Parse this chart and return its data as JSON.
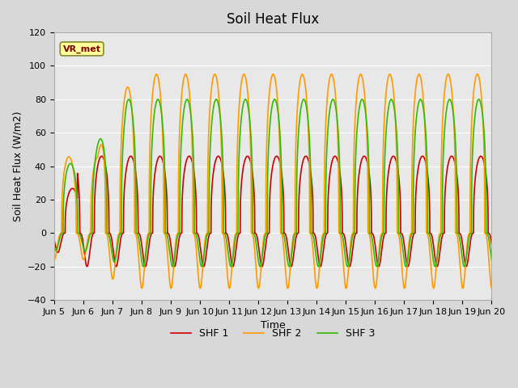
{
  "title": "Soil Heat Flux",
  "xlabel": "Time",
  "ylabel": "Soil Heat Flux (W/m2)",
  "xlim_days": [
    0,
    15
  ],
  "ylim": [
    -40,
    120
  ],
  "yticks": [
    -40,
    -20,
    0,
    20,
    40,
    60,
    80,
    100,
    120
  ],
  "background_color": "#d8d8d8",
  "plot_bg_color": "#e8e8e8",
  "shf1_color": "#cc0000",
  "shf2_color": "#ff9900",
  "shf3_color": "#33bb00",
  "legend_labels": [
    "SHF 1",
    "SHF 2",
    "SHF 3"
  ],
  "annotation_text": "VR_met",
  "annotation_box_color": "#ffff99",
  "annotation_text_color": "#800000",
  "title_fontsize": 12,
  "axis_label_fontsize": 9,
  "tick_label_fontsize": 8,
  "xtick_labels": [
    "Jun 5",
    "Jun 6",
    "Jun 7",
    "Jun 8",
    "Jun 9",
    "Jun 10",
    "Jun 11",
    "Jun 12",
    "Jun 13",
    "Jun 14",
    "Jun 15",
    "Jun 16",
    "Jun 17",
    "Jun 18",
    "Jun 19",
    "Jun 20"
  ],
  "xtick_positions": [
    0,
    1,
    2,
    3,
    4,
    5,
    6,
    7,
    8,
    9,
    10,
    11,
    12,
    13,
    14,
    15
  ],
  "points_per_day": 288,
  "line_width": 1.2,
  "shf2_phase_lead": 0.12,
  "shf3_phase_lead": 0.07,
  "shf1_amp_day": 46,
  "shf2_amp_day": 95,
  "shf3_amp_day": 80,
  "shf1_amp_night": 20,
  "shf2_amp_night": 33,
  "shf3_amp_night": 20,
  "peak_sharpness": 3.0
}
